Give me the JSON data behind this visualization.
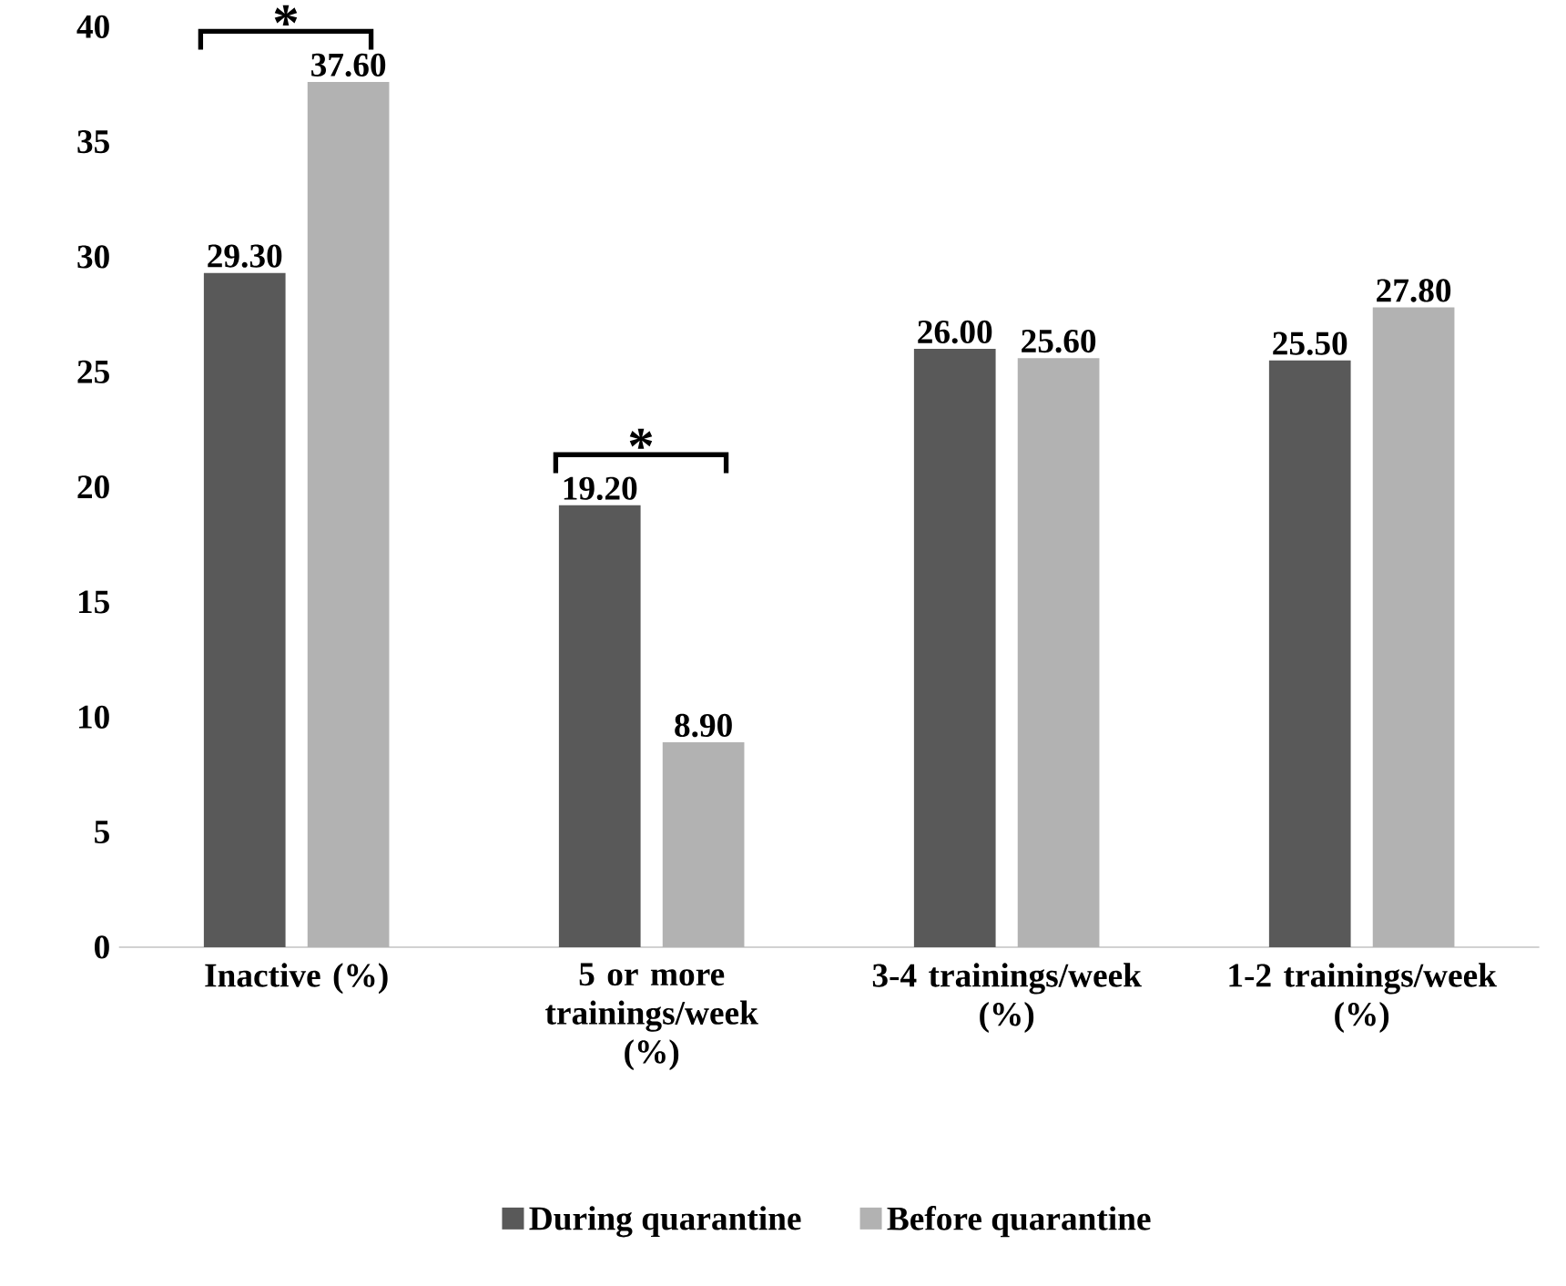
{
  "chart_data": {
    "type": "bar",
    "categories": [
      "Inactive (%)",
      "5 or more trainings/week (%)",
      "3-4 trainings/week (%)",
      "1-2 trainings/week (%)"
    ],
    "series": [
      {
        "name": "During quarantine",
        "color": "#595959",
        "values": [
          29.3,
          19.2,
          26.0,
          25.5
        ],
        "value_labels": [
          "29.30",
          "19.20",
          "26.00",
          "25.50"
        ]
      },
      {
        "name": "Before quarantine",
        "color": "#b2b2b2",
        "values": [
          37.6,
          8.9,
          25.6,
          27.8
        ],
        "value_labels": [
          "37.60",
          "8.90",
          "25.60",
          "27.80"
        ]
      }
    ],
    "ylim": [
      0,
      40
    ],
    "yticks": [
      0,
      5,
      10,
      15,
      20,
      25,
      30,
      35,
      40
    ],
    "grid": false,
    "legend": "bottom",
    "annotations": [
      "*",
      "*"
    ]
  }
}
